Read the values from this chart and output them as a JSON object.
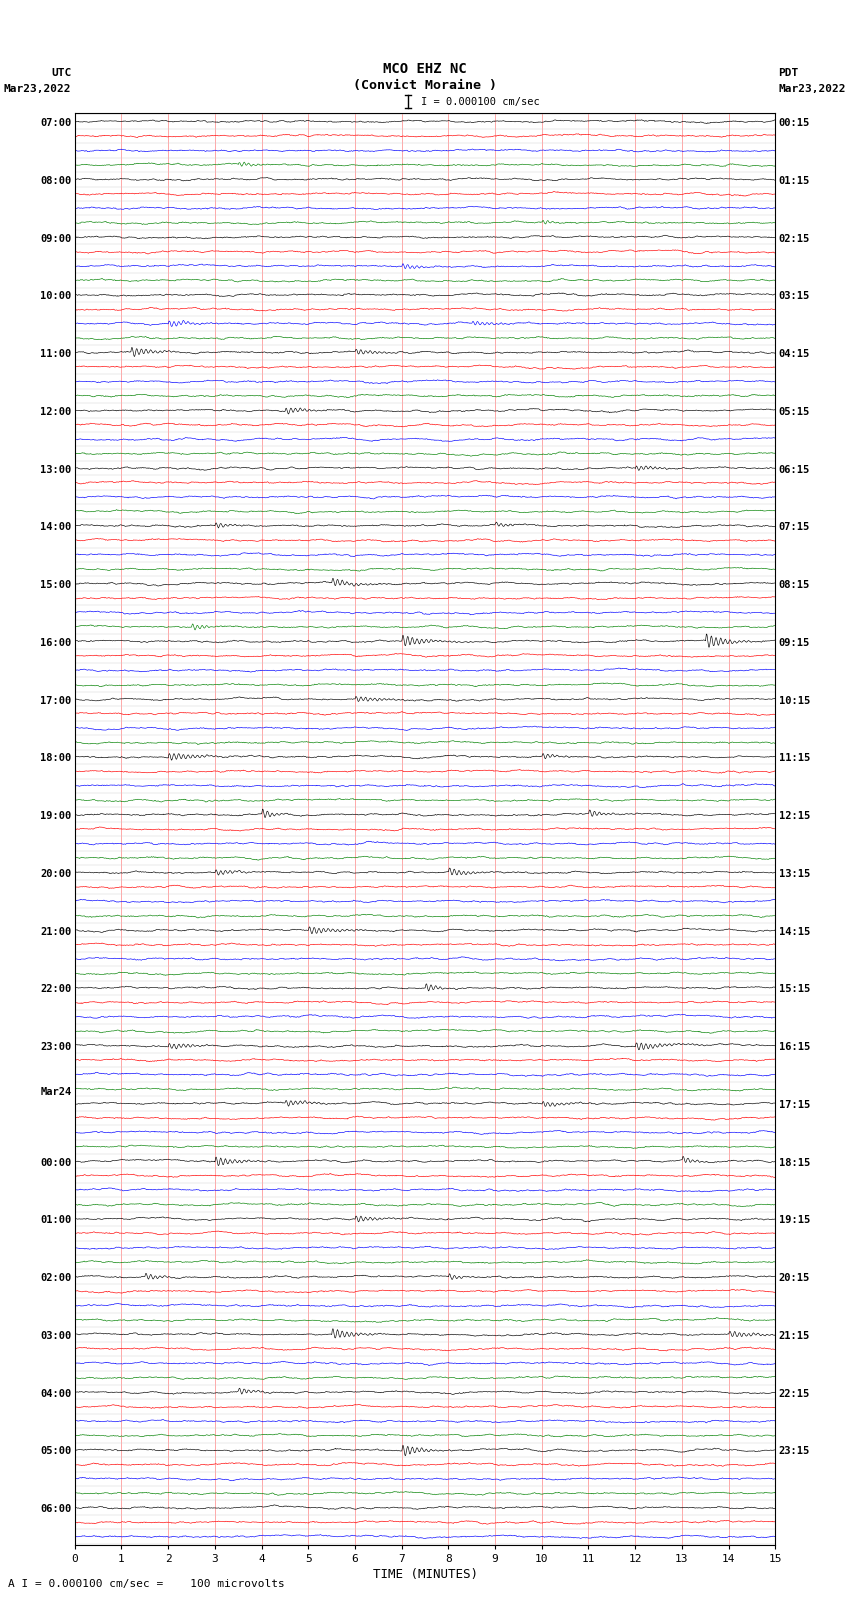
{
  "title_line1": "MCO EHZ NC",
  "title_line2": "(Convict Moraine )",
  "scale_label": "I = 0.000100 cm/sec",
  "utc_label": "UTC",
  "utc_date": "Mar23,2022",
  "pdt_label": "PDT",
  "pdt_date": "Mar23,2022",
  "bottom_label": "A I = 0.000100 cm/sec =    100 microvolts",
  "xlabel": "TIME (MINUTES)",
  "trace_colors": [
    "black",
    "red",
    "blue",
    "green"
  ],
  "background_color": "white",
  "n_minutes": 15,
  "n_rows": 99,
  "utc_times": [
    "07:00",
    "",
    "",
    "",
    "08:00",
    "",
    "",
    "",
    "09:00",
    "",
    "",
    "",
    "10:00",
    "",
    "",
    "",
    "11:00",
    "",
    "",
    "",
    "12:00",
    "",
    "",
    "",
    "13:00",
    "",
    "",
    "",
    "14:00",
    "",
    "",
    "",
    "15:00",
    "",
    "",
    "",
    "16:00",
    "",
    "",
    "",
    "17:00",
    "",
    "",
    "",
    "18:00",
    "",
    "",
    "",
    "19:00",
    "",
    "",
    "",
    "20:00",
    "",
    "",
    "",
    "21:00",
    "",
    "",
    "",
    "22:00",
    "",
    "",
    "",
    "23:00",
    "",
    "",
    "",
    "Mar24",
    "",
    "",
    "",
    "00:00",
    "",
    "",
    "",
    "01:00",
    "",
    "",
    "",
    "02:00",
    "",
    "",
    "",
    "03:00",
    "",
    "",
    "",
    "04:00",
    "",
    "",
    "",
    "05:00",
    "",
    "",
    "",
    "06:00",
    "",
    ""
  ],
  "pdt_times": [
    "00:15",
    "",
    "",
    "",
    "01:15",
    "",
    "",
    "",
    "02:15",
    "",
    "",
    "",
    "03:15",
    "",
    "",
    "",
    "04:15",
    "",
    "",
    "",
    "05:15",
    "",
    "",
    "",
    "06:15",
    "",
    "",
    "",
    "07:15",
    "",
    "",
    "",
    "08:15",
    "",
    "",
    "",
    "09:15",
    "",
    "",
    "",
    "10:15",
    "",
    "",
    "",
    "11:15",
    "",
    "",
    "",
    "12:15",
    "",
    "",
    "",
    "13:15",
    "",
    "",
    "",
    "14:15",
    "",
    "",
    "",
    "15:15",
    "",
    "",
    "",
    "16:15",
    "",
    "",
    "",
    "17:15",
    "",
    "",
    "",
    "18:15",
    "",
    "",
    "",
    "19:15",
    "",
    "",
    "",
    "20:15",
    "",
    "",
    "",
    "21:15",
    "",
    "",
    "",
    "22:15",
    "",
    "",
    "",
    "23:15",
    "",
    "",
    "",
    "",
    "",
    ""
  ],
  "fig_width": 8.5,
  "fig_height": 16.13,
  "dpi": 100
}
